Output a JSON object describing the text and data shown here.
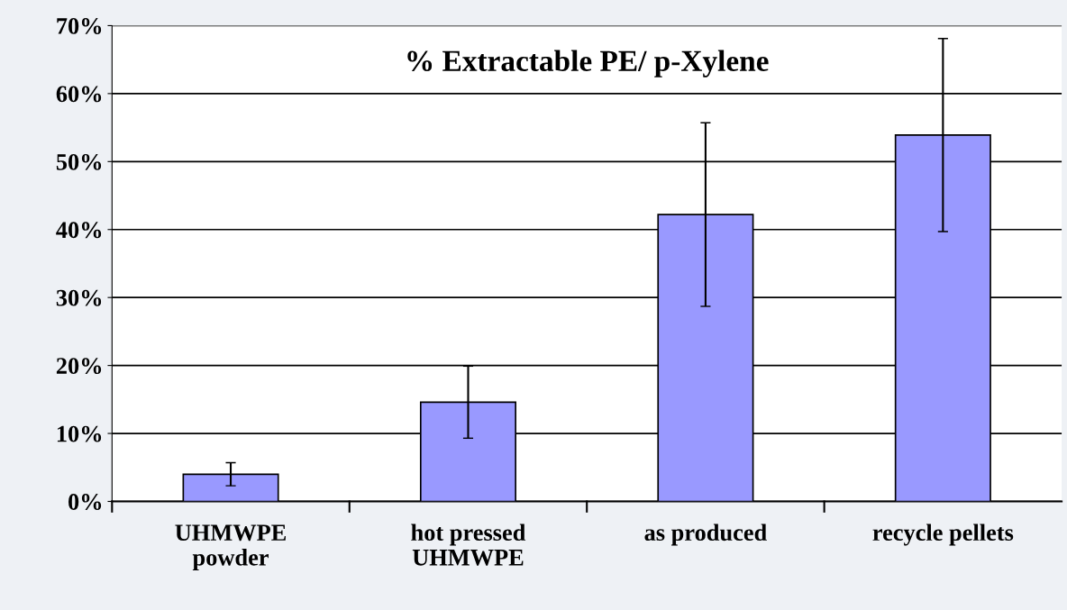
{
  "chart_data": {
    "type": "bar",
    "title": "% Extractable PE/ p-Xylene",
    "categories": [
      "UHMWPE\npowder",
      "hot pressed\nUHMWPE",
      "as produced",
      "recycle pellets"
    ],
    "values": [
      4.0,
      14.6,
      42.2,
      53.9
    ],
    "errors": [
      1.7,
      5.3,
      13.5,
      14.2
    ],
    "color": "#9999ff",
    "ylim": [
      0,
      70
    ],
    "yticks": [
      {
        "value": 0,
        "label": "0%"
      },
      {
        "value": 10,
        "label": "10%"
      },
      {
        "value": 20,
        "label": "20%"
      },
      {
        "value": 30,
        "label": "30%"
      },
      {
        "value": 40,
        "label": "40%"
      },
      {
        "value": 50,
        "label": "50%"
      },
      {
        "value": 60,
        "label": "60%"
      },
      {
        "value": 70,
        "label": "70%"
      }
    ],
    "grid": "y",
    "legend": false
  }
}
